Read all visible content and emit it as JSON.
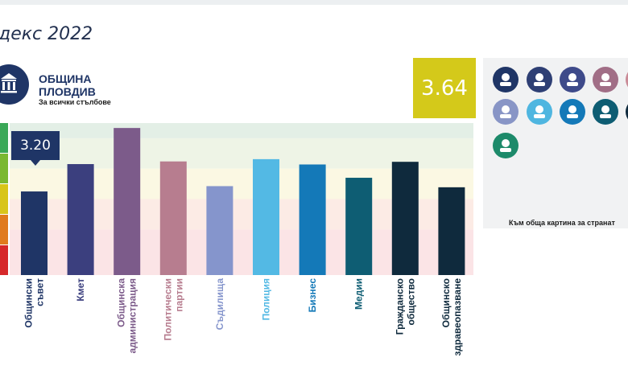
{
  "page": {
    "title": "декс 2022",
    "org_name": "ОБЩИНА ПЛОВДИВ",
    "org_subtitle": "За всички стълбове",
    "overall_score": "3.64",
    "panel_link": "Към обща картина за странат"
  },
  "icons": [
    {
      "name": "municipal-council-icon",
      "color": "#1f3566"
    },
    {
      "name": "mayor-icon",
      "color": "#2e3f74"
    },
    {
      "name": "administration-icon",
      "color": "#3e4a8a"
    },
    {
      "name": "political-parties-icon",
      "color": "#a16e86"
    },
    {
      "name": "partial-icon",
      "color": "#c98a96"
    },
    {
      "name": "courts-icon",
      "color": "#8895c6"
    },
    {
      "name": "police-icon",
      "color": "#4fb6e0"
    },
    {
      "name": "business-icon",
      "color": "#1479b8"
    },
    {
      "name": "media-icon",
      "color": "#0e5d73"
    },
    {
      "name": "partial-dark-icon",
      "color": "#0f2a3d"
    },
    {
      "name": "healthcare-icon",
      "color": "#1d8a6a"
    }
  ],
  "tooltip": {
    "value": "3.20"
  },
  "chart_data": {
    "type": "bar",
    "title": "",
    "xlabel": "",
    "ylabel": "",
    "ylim": [
      1,
      5
    ],
    "categories": [
      "Общински съвет",
      "Кмет",
      "Общинска администрация",
      "Политически партии",
      "Съдилища",
      "Полиция",
      "Бизнес",
      "Медии",
      "Гражданско общество",
      "Общинско здравеопазване"
    ],
    "label_lines": [
      [
        "Общински",
        "съвет"
      ],
      [
        "Кмет"
      ],
      [
        "Общинска",
        "администрация"
      ],
      [
        "Политически",
        "партии"
      ],
      [
        "Съдилища"
      ],
      [
        "Полиция"
      ],
      [
        "Бизнес"
      ],
      [
        "Медии"
      ],
      [
        "Гражданско",
        "общество"
      ],
      [
        "Общинско",
        "здравеопазване"
      ]
    ],
    "values": [
      3.2,
      3.92,
      4.87,
      3.99,
      3.34,
      4.05,
      3.91,
      3.56,
      3.98,
      3.31
    ],
    "colors": [
      "#1f3566",
      "#3b3f7e",
      "#7c5b8a",
      "#b77d8f",
      "#8595cc",
      "#53b9e4",
      "#1479b8",
      "#0e5d73",
      "#0f2a3d",
      "#0f2a3d"
    ],
    "bands": [
      {
        "from": 4.6,
        "to": 5.0,
        "color": "#e3efe6"
      },
      {
        "from": 3.8,
        "to": 4.6,
        "color": "#eef4e6"
      },
      {
        "from": 3.0,
        "to": 3.8,
        "color": "#fbf8e3"
      },
      {
        "from": 2.2,
        "to": 3.0,
        "color": "#fcebe5"
      },
      {
        "from": 1.0,
        "to": 2.2,
        "color": "#fbe4e6"
      }
    ],
    "scale_colors": [
      "#3aa857",
      "#7ab832",
      "#d8c51b",
      "#e07b1e",
      "#d6292b"
    ]
  }
}
